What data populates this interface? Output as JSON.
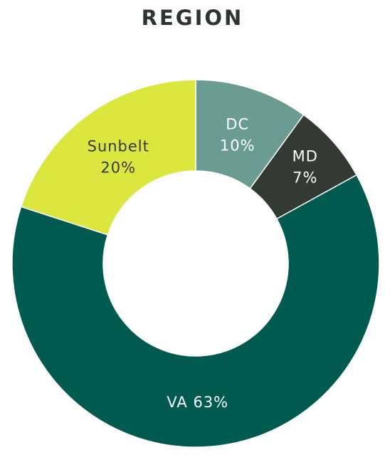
{
  "chart_data": {
    "type": "pie",
    "title": "REGION",
    "donut": true,
    "slices": [
      {
        "name": "DC",
        "value": 10,
        "label_line1": "DC",
        "label_line2": "10%",
        "color": "#6b9c94",
        "text_color": "#ffffff"
      },
      {
        "name": "MD",
        "value": 7,
        "label_line1": "MD",
        "label_line2": "7%",
        "color": "#333a33",
        "text_color": "#ffffff"
      },
      {
        "name": "VA",
        "value": 63,
        "label_line1": "VA 63%",
        "label_line2": "",
        "color": "#005a4f",
        "text_color": "#ffffff"
      },
      {
        "name": "Sunbelt",
        "value": 20,
        "label_line1": "Sunbelt",
        "label_line2": "20%",
        "color": "#dbe63f",
        "text_color": "#333a33"
      }
    ]
  }
}
